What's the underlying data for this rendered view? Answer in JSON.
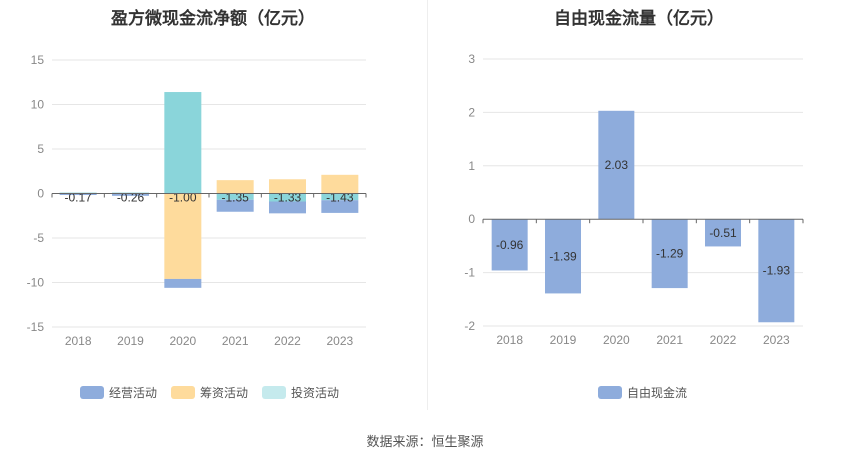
{
  "source_label": "数据来源：恒生聚源",
  "chart_data": [
    {
      "type": "bar",
      "title": "盈方微现金流净额（亿元）",
      "categories": [
        "2018",
        "2019",
        "2020",
        "2021",
        "2022",
        "2023"
      ],
      "ylim": [
        -15,
        15
      ],
      "yticks": [
        15,
        10,
        5,
        0,
        -5,
        -10,
        -15
      ],
      "stacked": true,
      "legend_position": "bottom",
      "series": [
        {
          "name": "经营活动",
          "color": "#8eacdc",
          "values": [
            -0.17,
            -0.26,
            -1.0,
            -1.35,
            -1.33,
            -1.43
          ],
          "labels": [
            "-0.17",
            "-0.26",
            "-1.00",
            "-1.35",
            "-1.33",
            "-1.43"
          ]
        },
        {
          "name": "筹资活动",
          "color": "#fedb9c",
          "values": [
            0.05,
            0.05,
            -9.6,
            1.5,
            1.6,
            2.1
          ]
        },
        {
          "name": "投资活动",
          "color": "#8ad5da",
          "values": [
            0.05,
            0.05,
            11.4,
            -0.7,
            -0.9,
            -0.75
          ]
        }
      ]
    },
    {
      "type": "bar",
      "title": "自由现金流量（亿元）",
      "categories": [
        "2018",
        "2019",
        "2020",
        "2021",
        "2022",
        "2023"
      ],
      "ylim": [
        -2,
        3
      ],
      "yticks": [
        3,
        2,
        1,
        0,
        -1,
        -2
      ],
      "legend_position": "bottom",
      "series": [
        {
          "name": "自由现金流",
          "color": "#8eacdc",
          "values": [
            -0.96,
            -1.39,
            2.03,
            -1.29,
            -0.51,
            -1.93
          ],
          "labels": [
            "-0.96",
            "-1.39",
            "2.03",
            "-1.29",
            "-0.51",
            "-1.93"
          ]
        }
      ]
    }
  ]
}
